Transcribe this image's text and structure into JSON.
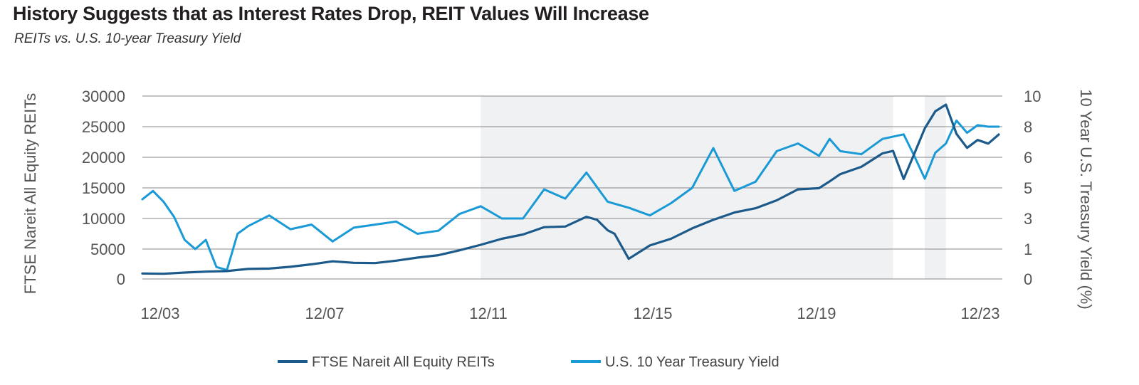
{
  "chart_data": {
    "type": "line",
    "title": "History Suggests that as Interest Rates Drop, REIT Values Will Increase",
    "subtitle": "REITs vs. U.S. 10-year Treasury Yield",
    "ylabel_left": "FTSE Nareit All Equity REITs",
    "ylabel_right": "10 Year U.S. Treasury Yield (%)",
    "y_left_ticks": [
      "30000",
      "25000",
      "20000",
      "15000",
      "10000",
      "5000",
      "0"
    ],
    "y_right_ticks": [
      "10",
      "8",
      "6",
      "5",
      "3",
      "1",
      "0"
    ],
    "x_ticks": [
      "12/03",
      "12/07",
      "12/11",
      "12/15",
      "12/19",
      "12/23"
    ],
    "ylim_left": [
      0,
      30000
    ],
    "grid": "horizontal",
    "legend_position": "bottom",
    "shaded_periods": [
      [
        "2011-12",
        "2021-09"
      ],
      [
        "2022-06",
        "2022-12"
      ]
    ],
    "colors": {
      "reits": "#1b5a8a",
      "yield": "#199ad6",
      "shade": "#f0f1f3",
      "grid": "#888888"
    },
    "series": [
      {
        "name": "FTSE Nareit All Equity REITs",
        "axis": "left",
        "x": [
          "2003-12",
          "2004-06",
          "2004-12",
          "2005-06",
          "2005-12",
          "2006-06",
          "2006-12",
          "2007-06",
          "2007-12",
          "2008-06",
          "2008-12",
          "2009-06",
          "2009-12",
          "2010-06",
          "2010-12",
          "2011-06",
          "2011-12",
          "2012-06",
          "2012-12",
          "2013-06",
          "2013-12",
          "2014-06",
          "2014-09",
          "2014-12",
          "2015-02",
          "2015-06",
          "2015-12",
          "2016-06",
          "2016-12",
          "2017-06",
          "2017-12",
          "2018-06",
          "2018-12",
          "2019-06",
          "2019-12",
          "2020-03",
          "2020-06",
          "2020-12",
          "2021-06",
          "2021-09",
          "2021-12",
          "2022-03",
          "2022-06",
          "2022-09",
          "2022-12",
          "2023-03",
          "2023-06",
          "2023-09",
          "2023-12",
          "2024-03"
        ],
        "values": [
          900,
          850,
          1050,
          1200,
          1300,
          1650,
          1700,
          2000,
          2400,
          2900,
          2650,
          2600,
          3000,
          3500,
          3900,
          4700,
          5600,
          6600,
          7300,
          8500,
          8600,
          10200,
          9700,
          8000,
          7400,
          3300,
          5500,
          6600,
          8300,
          9700,
          10900,
          11600,
          12900,
          14700,
          14900,
          16000,
          17200,
          18400,
          20600,
          21000,
          16400,
          20500,
          24700,
          27500,
          28600,
          23800,
          21500,
          22800,
          22200,
          23700
        ]
      },
      {
        "name": "U.S. 10 Year Treasury Yield",
        "axis": "right",
        "x": [
          "2003-12",
          "2004-03",
          "2004-06",
          "2004-09",
          "2004-12",
          "2005-03",
          "2005-06",
          "2005-09",
          "2005-12",
          "2006-03",
          "2006-06",
          "2006-12",
          "2007-06",
          "2007-12",
          "2008-06",
          "2008-12",
          "2009-06",
          "2009-12",
          "2010-06",
          "2010-12",
          "2011-06",
          "2011-12",
          "2012-06",
          "2012-12",
          "2013-06",
          "2013-12",
          "2014-06",
          "2014-12",
          "2015-06",
          "2015-12",
          "2016-06",
          "2016-12",
          "2017-06",
          "2017-12",
          "2018-06",
          "2018-12",
          "2019-06",
          "2019-12",
          "2020-03",
          "2020-06",
          "2020-12",
          "2021-06",
          "2021-12",
          "2022-03",
          "2022-06",
          "2022-09",
          "2022-12",
          "2023-03",
          "2023-06",
          "2023-09",
          "2023-12",
          "2024-03"
        ],
        "values": [
          4.25,
          4.8,
          4.1,
          3.1,
          1.6,
          1.0,
          1.6,
          0.4,
          0.3,
          2.0,
          2.5,
          3.2,
          2.3,
          2.6,
          1.5,
          2.4,
          2.6,
          2.8,
          2.0,
          2.2,
          3.3,
          3.8,
          3.0,
          3.0,
          4.9,
          4.3,
          5.5,
          4.1,
          3.7,
          3.2,
          4.0,
          5.0,
          6.6,
          4.8,
          5.2,
          6.4,
          6.9,
          6.1,
          7.2,
          6.4,
          6.2,
          7.2,
          7.5,
          6.1,
          5.3,
          6.3,
          6.9,
          8.4,
          7.6,
          8.1,
          8.0,
          8.0
        ]
      }
    ]
  },
  "legend": {
    "reits_label": "FTSE Nareit All Equity REITs",
    "yield_label": "U.S. 10 Year Treasury Yield"
  }
}
